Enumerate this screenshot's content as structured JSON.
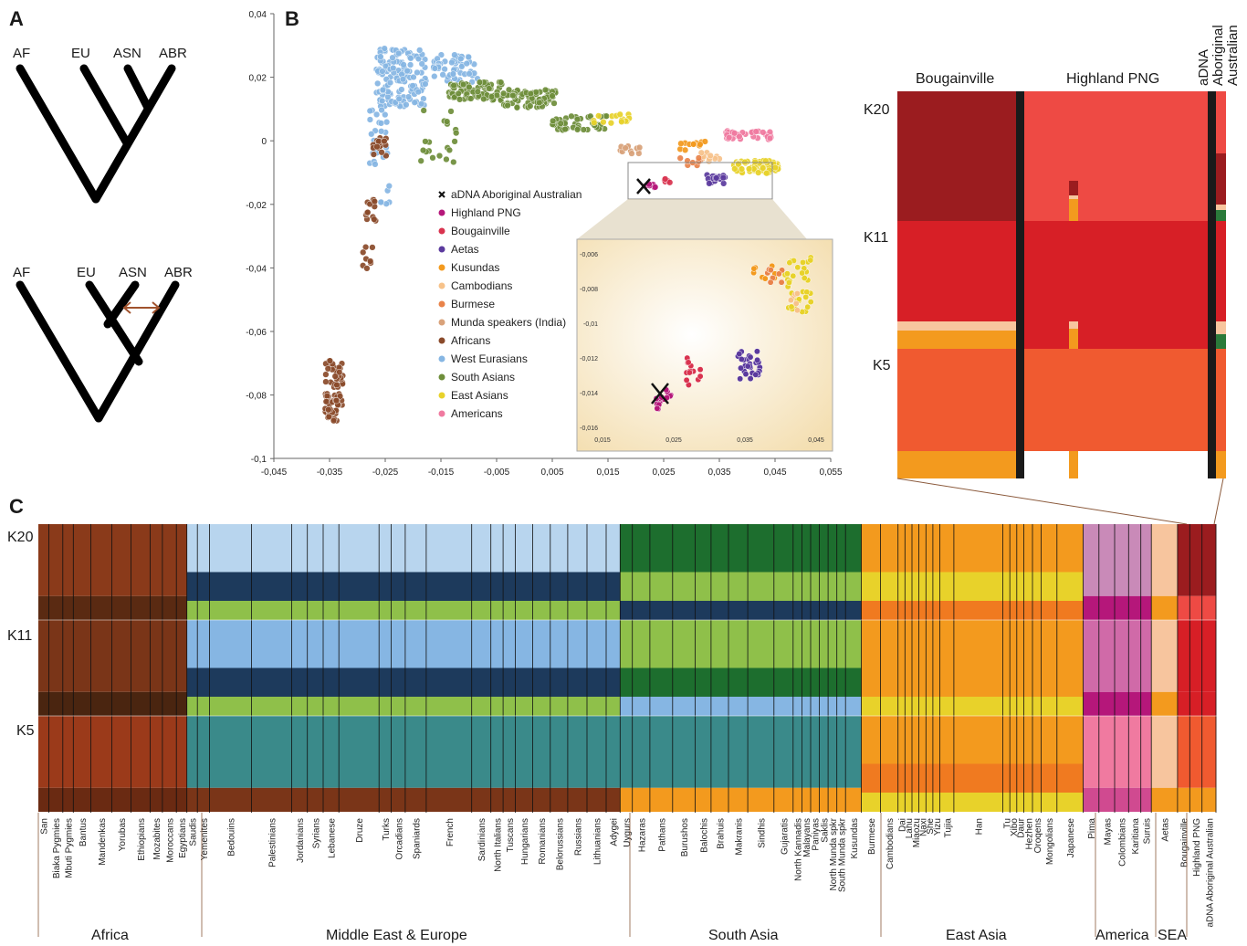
{
  "panel_a": {
    "letter": "A",
    "tree_top": {
      "leaves": [
        "AF",
        "EU",
        "ASN",
        "ABR"
      ]
    },
    "tree_bottom": {
      "leaves": [
        "AF",
        "EU",
        "ASN",
        "ABR"
      ]
    },
    "admixture_arrow_color": "#a0522d"
  },
  "panel_b": {
    "letter": "B",
    "y_ticks": [
      "0,04",
      "0,02",
      "0",
      "-0,02",
      "-0,04",
      "-0,06",
      "-0,08",
      "-0,1"
    ],
    "x_ticks": [
      "-0,045",
      "-0,035",
      "-0,025",
      "-0,015",
      "-0,005",
      "0,005",
      "0,015",
      "0,025",
      "0,035",
      "0,045",
      "0,055"
    ],
    "inset_y_ticks": [
      "-0,006",
      "-0,008",
      "-0,01",
      "-0,012",
      "-0,014",
      "-0,016"
    ],
    "inset_x_ticks": [
      "0,015",
      "0,025",
      "0,035",
      "0,045"
    ],
    "legend": [
      {
        "label": "aDNA Aboriginal Australian",
        "color": "#111111",
        "marker": "x"
      },
      {
        "label": "Highland PNG",
        "color": "#b5177a"
      },
      {
        "label": "Bougainville",
        "color": "#d9334f"
      },
      {
        "label": "Aetas",
        "color": "#5b3a9e"
      },
      {
        "label": "Kusundas",
        "color": "#f39a1e"
      },
      {
        "label": "Cambodians",
        "color": "#f7c28a"
      },
      {
        "label": "Burmese",
        "color": "#e9834a"
      },
      {
        "label": "Munda speakers (India)",
        "color": "#d9a27a"
      },
      {
        "label": "Africans",
        "color": "#8a4a2a"
      },
      {
        "label": "West Eurasians",
        "color": "#86b6e3"
      },
      {
        "label": "South Asians",
        "color": "#6e8e3a"
      },
      {
        "label": "East Asians",
        "color": "#e8d22a"
      },
      {
        "label": "Americans",
        "color": "#f07aa0"
      }
    ]
  },
  "panel_b_bars": {
    "headers": [
      "Bougainville",
      "Highland PNG",
      "aDNA Aboriginal Australian"
    ],
    "header_adna_lines": [
      "aDNA",
      "Aboriginal",
      "Australian"
    ],
    "k_labels": [
      "K20",
      "K11",
      "K5"
    ]
  },
  "panel_c": {
    "letter": "C",
    "k_labels": [
      "K20",
      "K11",
      "K5"
    ],
    "populations": [
      "San",
      "Biaka Pygmies",
      "Mbuti Pygmies",
      "Bantus",
      "Mandenkas",
      "Yorubas",
      "Ethiopians",
      "Mozabites",
      "Moroccans",
      "Egyptians",
      "Saudis",
      "Yemenites",
      "Bedouins",
      "Palestinians",
      "Jordanians",
      "Syrians",
      "Lebanese",
      "Druze",
      "Turks",
      "Orcadians",
      "Spaniards",
      "French",
      "Sardinians",
      "North Italians",
      "Tuscans",
      "Hungarians",
      "Romanians",
      "Belorussians",
      "Russians",
      "Lithuanians",
      "Adygei",
      "Uygurs",
      "Hazaras",
      "Pathans",
      "Burushos",
      "Balochis",
      "Brahuis",
      "Makranis",
      "Sindhis",
      "Gujaratis",
      "North Kannadis",
      "Malayans",
      "Paniyas",
      "Saklis",
      "North Munda spkr",
      "South Munda spkr",
      "Kusundas",
      "Burmese",
      "Cambodians",
      "Dai",
      "Lahu",
      "Miaozu",
      "Naxi",
      "She",
      "Yizu",
      "Tujia",
      "Han",
      "Tu",
      "Xibo",
      "Daur",
      "Hezhen",
      "Oroqens",
      "Mongolians",
      "Japanese",
      "Pima",
      "Mayas",
      "Colombians",
      "Karitiana",
      "Suruis",
      "Aetas",
      "Bougainville",
      "Highland PNG",
      "aDNA Aboriginal Australian"
    ],
    "regions": [
      "Africa",
      "Middle East & Europe",
      "South Asia",
      "East Asia",
      "America",
      "SEA"
    ]
  }
}
